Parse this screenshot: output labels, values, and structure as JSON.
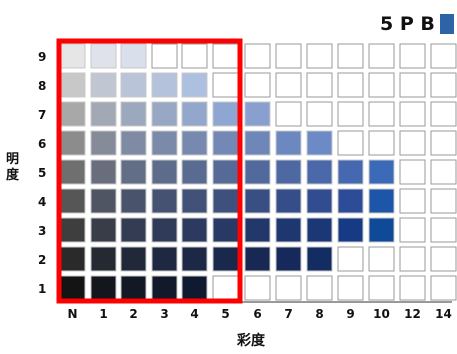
{
  "hue_label": "5 P B",
  "hue_swatch_color": "#2f63a8",
  "y_axis_label": "明度",
  "x_axis_label": "彩度",
  "y_ticks": [
    "9",
    "8",
    "7",
    "6",
    "5",
    "4",
    "3",
    "2",
    "1"
  ],
  "x_ticks": [
    "N",
    "1",
    "2",
    "3",
    "4",
    "5",
    "6",
    "7",
    "8",
    "9",
    "10",
    "12",
    "14"
  ],
  "highlight_color": "#ff0000",
  "highlight_range": {
    "chroma_from": "N",
    "chroma_to": "5",
    "value_from": "1",
    "value_to": "9"
  },
  "chart_data": {
    "type": "heatmap",
    "hue": "5PB",
    "x": [
      "N",
      "1",
      "2",
      "3",
      "4",
      "5",
      "6",
      "7",
      "8",
      "9",
      "10",
      "12",
      "14"
    ],
    "y": [
      "9",
      "8",
      "7",
      "6",
      "5",
      "4",
      "3",
      "2",
      "1"
    ],
    "rows": [
      {
        "value": "9",
        "colors": [
          "#e6e6e6",
          "#dfe2ea",
          "#d9e0ec",
          null,
          null,
          null,
          null,
          null,
          null,
          null,
          null,
          null,
          null
        ]
      },
      {
        "value": "8",
        "colors": [
          "#c8c8c8",
          "#c0c6d2",
          "#b9c4d8",
          "#b4c2dc",
          "#aec0e0",
          null,
          null,
          null,
          null,
          null,
          null,
          null,
          null
        ]
      },
      {
        "value": "7",
        "colors": [
          "#a8a8a8",
          "#a2a8b4",
          "#9ca8bc",
          "#98a8c4",
          "#93a7cc",
          "#8ea6d2",
          "#899fcf",
          null,
          null,
          null,
          null,
          null,
          null
        ]
      },
      {
        "value": "6",
        "colors": [
          "#8c8c8c",
          "#858b99",
          "#7f8ba2",
          "#7b8aa8",
          "#7789ae",
          "#7388b4",
          "#6e86b8",
          "#6c88c0",
          "#6b8ac6",
          null,
          null,
          null,
          null
        ]
      },
      {
        "value": "5",
        "colors": [
          "#6f6f6f",
          "#686e7c",
          "#626d86",
          "#5e6c8c",
          "#5a6b92",
          "#566a98",
          "#52699e",
          "#4e68a4",
          "#4a68aa",
          "#4668b0",
          "#3b6ab8",
          null,
          null
        ]
      },
      {
        "value": "4",
        "colors": [
          "#565656",
          "#4f5562",
          "#49536c",
          "#455272",
          "#415178",
          "#3d507e",
          "#394f84",
          "#354e8a",
          "#314c90",
          "#2c4c98",
          "#1d56a8",
          null,
          null
        ]
      },
      {
        "value": "3",
        "colors": [
          "#3e3e3e",
          "#383d48",
          "#333c52",
          "#2f3b58",
          "#2b3a5e",
          "#273964",
          "#23386a",
          "#1f3770",
          "#1c3776",
          "#163a84",
          "#0e4a98",
          null,
          null
        ]
      },
      {
        "value": "2",
        "colors": [
          "#2a2a2a",
          "#252932",
          "#20283a",
          "#1e2840",
          "#1c2846",
          "#1a284c",
          "#172852",
          "#152a5a",
          "#132c62",
          null,
          null,
          null,
          null
        ]
      },
      {
        "value": "1",
        "colors": [
          "#141414",
          "#13161c",
          "#121824",
          "#11192a",
          "#0f1a30",
          null,
          null,
          null,
          null,
          null,
          null,
          null,
          null
        ]
      }
    ]
  }
}
